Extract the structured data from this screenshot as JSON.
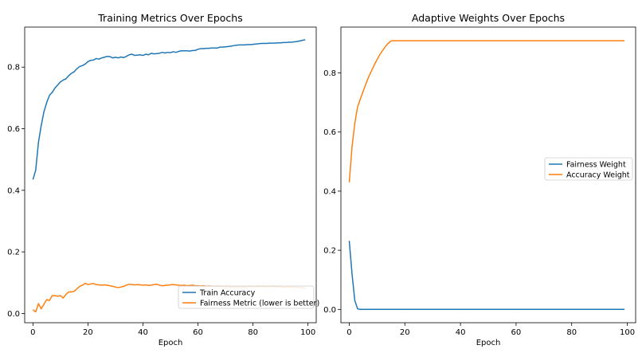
{
  "chart_data": [
    {
      "type": "line",
      "title": "Training Metrics Over Epochs",
      "xlabel": "Epoch",
      "ylabel": "",
      "xlim": [
        -3,
        103
      ],
      "ylim": [
        -0.03,
        0.93
      ],
      "xticks": [
        0,
        20,
        40,
        60,
        80,
        100
      ],
      "yticks": [
        0.0,
        0.2,
        0.4,
        0.6,
        0.8
      ],
      "grid": false,
      "legend_position": "lower-right",
      "series": [
        {
          "name": "Train Accuracy",
          "color": "#1f77b4",
          "x": [
            0,
            1,
            2,
            3,
            4,
            5,
            6,
            7,
            8,
            9,
            10,
            11,
            12,
            13,
            14,
            15,
            16,
            17,
            18,
            19,
            20,
            21,
            22,
            23,
            24,
            25,
            26,
            27,
            28,
            29,
            30,
            31,
            32,
            33,
            34,
            35,
            36,
            37,
            38,
            39,
            40,
            41,
            42,
            43,
            44,
            45,
            46,
            47,
            48,
            49,
            50,
            51,
            52,
            53,
            54,
            55,
            56,
            57,
            58,
            59,
            60,
            61,
            62,
            63,
            64,
            65,
            66,
            67,
            68,
            69,
            70,
            71,
            72,
            73,
            74,
            75,
            76,
            77,
            78,
            79,
            80,
            81,
            82,
            83,
            84,
            85,
            86,
            87,
            88,
            89,
            90,
            91,
            92,
            93,
            94,
            95,
            96,
            97,
            98,
            99
          ],
          "y": [
            0.435,
            0.465,
            0.555,
            0.61,
            0.655,
            0.685,
            0.708,
            0.718,
            0.732,
            0.742,
            0.752,
            0.758,
            0.762,
            0.772,
            0.78,
            0.785,
            0.795,
            0.802,
            0.805,
            0.81,
            0.818,
            0.822,
            0.823,
            0.828,
            0.826,
            0.83,
            0.832,
            0.835,
            0.834,
            0.83,
            0.832,
            0.83,
            0.833,
            0.831,
            0.835,
            0.84,
            0.842,
            0.838,
            0.839,
            0.84,
            0.838,
            0.842,
            0.84,
            0.845,
            0.843,
            0.844,
            0.845,
            0.848,
            0.846,
            0.848,
            0.847,
            0.85,
            0.848,
            0.851,
            0.853,
            0.853,
            0.853,
            0.852,
            0.854,
            0.854,
            0.858,
            0.86,
            0.86,
            0.861,
            0.861,
            0.862,
            0.862,
            0.862,
            0.865,
            0.865,
            0.866,
            0.867,
            0.868,
            0.87,
            0.871,
            0.872,
            0.872,
            0.872,
            0.873,
            0.873,
            0.874,
            0.875,
            0.876,
            0.877,
            0.877,
            0.877,
            0.878,
            0.878,
            0.878,
            0.879,
            0.879,
            0.88,
            0.88,
            0.881,
            0.881,
            0.882,
            0.883,
            0.885,
            0.887,
            0.889
          ]
        },
        {
          "name": "Fairness Metric (lower is better)",
          "color": "#ff7f0e",
          "x": [
            0,
            1,
            2,
            3,
            4,
            5,
            6,
            7,
            8,
            9,
            10,
            11,
            12,
            13,
            14,
            15,
            16,
            17,
            18,
            19,
            20,
            21,
            22,
            23,
            24,
            25,
            26,
            27,
            28,
            29,
            30,
            31,
            32,
            33,
            34,
            35,
            36,
            37,
            38,
            39,
            40,
            41,
            42,
            43,
            44,
            45,
            46,
            47,
            48,
            49,
            50,
            51,
            52,
            53,
            54,
            55,
            56,
            57,
            58,
            59,
            60,
            61,
            62,
            63,
            64,
            65,
            66,
            67,
            68,
            69,
            70,
            71,
            72,
            73,
            74,
            75,
            76,
            77,
            78,
            79,
            80,
            81,
            82,
            83,
            84,
            85,
            86,
            87,
            88,
            89,
            90,
            91,
            92,
            93,
            94,
            95,
            96,
            97,
            98,
            99
          ],
          "y": [
            0.012,
            0.005,
            0.032,
            0.015,
            0.03,
            0.045,
            0.042,
            0.058,
            0.058,
            0.056,
            0.058,
            0.05,
            0.062,
            0.07,
            0.07,
            0.072,
            0.08,
            0.088,
            0.092,
            0.098,
            0.094,
            0.096,
            0.097,
            0.094,
            0.093,
            0.092,
            0.093,
            0.092,
            0.09,
            0.088,
            0.086,
            0.084,
            0.086,
            0.088,
            0.092,
            0.095,
            0.094,
            0.093,
            0.094,
            0.093,
            0.092,
            0.093,
            0.091,
            0.092,
            0.094,
            0.095,
            0.092,
            0.09,
            0.091,
            0.092,
            0.093,
            0.094,
            0.093,
            0.092,
            0.091,
            0.092,
            0.09,
            0.091,
            0.092,
            0.09,
            0.09,
            0.089,
            0.09,
            0.088,
            0.089,
            0.088,
            0.087,
            0.088,
            0.088,
            0.087,
            0.088,
            0.087,
            0.086,
            0.087,
            0.086,
            0.087,
            0.086,
            0.086,
            0.087,
            0.088,
            0.087,
            0.087,
            0.088,
            0.087,
            0.088,
            0.086,
            0.087,
            0.088,
            0.087,
            0.086,
            0.088,
            0.084,
            0.086,
            0.085,
            0.086,
            0.085,
            0.084,
            0.086,
            0.083,
            0.082
          ]
        }
      ]
    },
    {
      "type": "line",
      "title": "Adaptive Weights Over Epochs",
      "xlabel": "Epoch",
      "ylabel": "",
      "xlim": [
        -3,
        103
      ],
      "ylim": [
        -0.045,
        0.955
      ],
      "xticks": [
        0,
        20,
        40,
        60,
        80,
        100
      ],
      "yticks": [
        0.0,
        0.2,
        0.4,
        0.6,
        0.8
      ],
      "grid": false,
      "legend_position": "center-right",
      "series": [
        {
          "name": "Fairness Weight",
          "color": "#1f77b4",
          "x": [
            0,
            1,
            2,
            3,
            4,
            5,
            10,
            20,
            30,
            40,
            50,
            60,
            70,
            80,
            90,
            99
          ],
          "y": [
            0.232,
            0.12,
            0.03,
            0.002,
            0.0,
            0.0,
            0.0,
            0.0,
            0.0,
            0.0,
            0.0,
            0.0,
            0.0,
            0.0,
            0.0,
            0.0
          ]
        },
        {
          "name": "Accuracy Weight",
          "color": "#ff7f0e",
          "x": [
            0,
            1,
            2,
            3,
            4,
            5,
            6,
            7,
            8,
            9,
            10,
            11,
            12,
            13,
            14,
            15,
            16,
            17,
            20,
            30,
            40,
            50,
            60,
            70,
            80,
            90,
            99
          ],
          "y": [
            0.43,
            0.55,
            0.63,
            0.685,
            0.712,
            0.738,
            0.763,
            0.787,
            0.807,
            0.827,
            0.845,
            0.862,
            0.876,
            0.889,
            0.9,
            0.908,
            0.909,
            0.909,
            0.909,
            0.909,
            0.909,
            0.909,
            0.909,
            0.909,
            0.909,
            0.909,
            0.909
          ]
        }
      ]
    }
  ]
}
